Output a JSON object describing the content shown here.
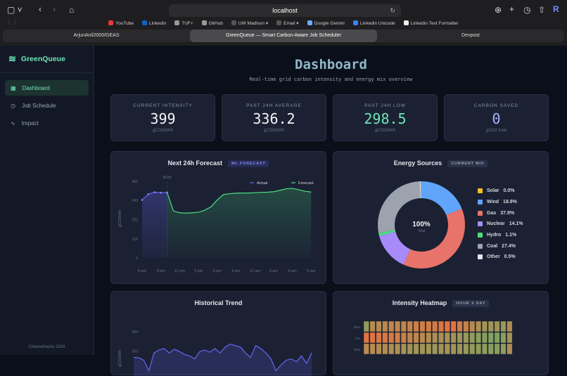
{
  "browser": {
    "url": "localhost",
    "bookmarks": [
      {
        "label": "YouTube",
        "color": "#e53935"
      },
      {
        "label": "Linkedin",
        "color": "#0a66c2"
      },
      {
        "label": "TUF+",
        "color": "#999999"
      },
      {
        "label": "GitHub",
        "color": "#999999"
      },
      {
        "label": "UW Madison ▾",
        "color": "#555555"
      },
      {
        "label": "Email ▾",
        "color": "#555555"
      },
      {
        "label": "Google Gemini",
        "color": "#6fa8ff"
      },
      {
        "label": "Linkedin Unicode",
        "color": "#3b82f6"
      },
      {
        "label": "Linkedin Text Formatter",
        "color": "#eeeeee"
      }
    ],
    "tabs": [
      "ArjunAnil2000/GEAS",
      "GreenQueue — Smart Carbon-Aware Job Scheduler",
      "Devpost"
    ],
    "profile_initial": "R"
  },
  "sidebar": {
    "brand": "GreenQueue",
    "items": [
      {
        "label": "Dashboard",
        "icon": "grid-icon"
      },
      {
        "label": "Job Schedule",
        "icon": "clock-icon"
      },
      {
        "label": "Impact",
        "icon": "activity-icon"
      }
    ],
    "footer": "CheeseHacks 2026"
  },
  "header": {
    "title": "Dashboard",
    "subtitle": "Real-time grid carbon intensity and energy mix overview"
  },
  "stats": [
    {
      "label": "CURRENT INTENSITY",
      "value": "399",
      "unit": "gCO2/kWh",
      "color": "#f3f4f6"
    },
    {
      "label": "PAST 24H AVERAGE",
      "value": "336.2",
      "unit": "gCO2/kWh",
      "color": "#f3f4f6"
    },
    {
      "label": "PAST 24H LOW",
      "value": "298.5",
      "unit": "gCO2/kWh",
      "color": "#6ee7b7"
    },
    {
      "label": "CARBON SAVED",
      "value": "0",
      "unit": "gCO2 total",
      "color": "#a5b4fc"
    }
  ],
  "chart_data": [
    {
      "type": "line",
      "title": "Next 24h Forecast",
      "badge": "ML FORECAST",
      "ylabel": "gCO2/kWh",
      "ylim": [
        0,
        465
      ],
      "yticks": [
        0,
        116,
        232,
        349,
        465
      ],
      "xticks": [
        "6 pm",
        "9 pm",
        "12 pm",
        "3 pm",
        "6 pm",
        "9 pm",
        "12 am",
        "3 am",
        "6 am",
        "9 am"
      ],
      "now_label": "NOW",
      "series": [
        {
          "name": "Actual",
          "color": "#6366f1",
          "values": [
            352,
            387,
            399,
            396,
            397
          ]
        },
        {
          "name": "Forecast",
          "color": "#4ade80",
          "values": [
            397,
            285,
            274,
            272,
            274,
            277,
            290,
            310,
            352,
            385,
            390,
            393,
            394,
            394,
            396,
            398,
            399,
            402,
            410,
            420,
            422,
            414,
            405,
            400
          ]
        }
      ]
    },
    {
      "type": "pie",
      "title": "Energy Sources",
      "badge": "CURRENT MIX",
      "center_value": "100%",
      "center_label": "Total",
      "slices": [
        {
          "name": "Solar",
          "value": 0.0,
          "label": "0.0%",
          "color": "#fbbf24"
        },
        {
          "name": "Wind",
          "value": 18.9,
          "label": "18.9%",
          "color": "#60a5fa"
        },
        {
          "name": "Gas",
          "value": 37.9,
          "label": "37.9%",
          "color": "#e8736a"
        },
        {
          "name": "Nuclear",
          "value": 14.1,
          "label": "14.1%",
          "color": "#a78bfa"
        },
        {
          "name": "Hydro",
          "value": 1.1,
          "label": "1.1%",
          "color": "#4ade80"
        },
        {
          "name": "Coal",
          "value": 27.4,
          "label": "27.4%",
          "color": "#9ca3af"
        },
        {
          "name": "Other",
          "value": 0.5,
          "label": "0.5%",
          "color": "#e5e7eb"
        }
      ]
    },
    {
      "type": "area",
      "title": "Historical Trend",
      "yticks": [
        393,
        524
      ],
      "ylabel": "gCO2/kWh",
      "values": [
        350,
        348,
        330,
        260,
        380,
        400,
        410,
        380,
        405,
        390,
        370,
        360,
        340,
        390,
        400,
        385,
        410,
        380,
        420,
        440,
        430,
        420,
        380,
        350,
        430,
        410,
        380,
        340,
        260,
        300,
        330,
        340,
        320,
        360,
        310,
        380
      ]
    },
    {
      "type": "heatmap",
      "title": "Intensity Heatmap",
      "badge": "HOUR X DAY",
      "rows": [
        "Mon",
        "Tue",
        "Wed"
      ],
      "values": [
        [
          0.25,
          0.5,
          0.5,
          0.55,
          0.6,
          0.6,
          0.62,
          0.65,
          0.7,
          0.72,
          0.75,
          0.8,
          0.85,
          0.9,
          0.92,
          0.8,
          0.65,
          0.55,
          0.45,
          0.4,
          0.35,
          0.35,
          0.3,
          0.5
        ],
        [
          0.9,
          0.88,
          0.85,
          0.82,
          0.8,
          0.75,
          0.7,
          0.65,
          0.6,
          0.55,
          0.5,
          0.45,
          0.45,
          0.4,
          0.38,
          0.35,
          0.3,
          0.25,
          0.2,
          0.18,
          0.15,
          0.15,
          0.2,
          0.4
        ],
        [
          0.55,
          0.5,
          0.5,
          0.48,
          0.45,
          0.42,
          0.4,
          0.38,
          0.38,
          0.35,
          0.35,
          0.35,
          0.38,
          0.4,
          0.38,
          0.35,
          0.3,
          0.28,
          0.25,
          0.22,
          0.2,
          0.2,
          0.25,
          0.45
        ]
      ]
    }
  ]
}
